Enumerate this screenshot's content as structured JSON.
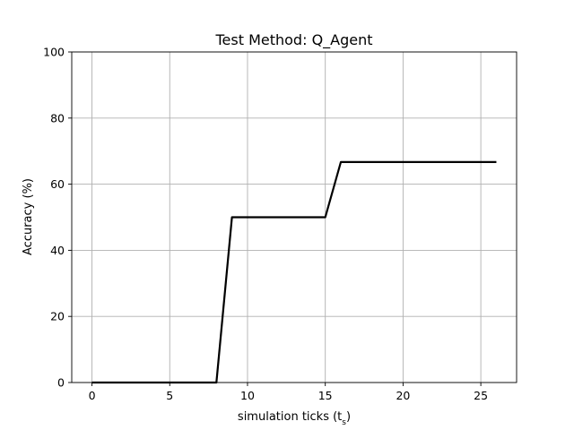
{
  "chart_data": {
    "type": "line",
    "title": "Test Method: Q_Agent",
    "xlabel": "simulation ticks (t",
    "xlabel_sub": "s",
    "xlabel_end": ")",
    "ylabel": "Accuracy (%)",
    "xlim": [
      -1.3,
      27.3
    ],
    "ylim": [
      0,
      100
    ],
    "xticks": [
      0,
      5,
      10,
      15,
      20,
      25
    ],
    "yticks": [
      0,
      20,
      40,
      60,
      80,
      100
    ],
    "grid": true,
    "legend": "none",
    "series": [
      {
        "color": "#000000",
        "x": [
          0,
          1,
          2,
          3,
          4,
          5,
          6,
          7,
          8,
          9,
          10,
          11,
          12,
          13,
          14,
          15,
          16,
          17,
          18,
          19,
          20,
          21,
          22,
          23,
          24,
          25,
          26
        ],
        "y": [
          0,
          0,
          0,
          0,
          0,
          0,
          0,
          0,
          0,
          50,
          50,
          50,
          50,
          50,
          50,
          50,
          66.7,
          66.7,
          66.7,
          66.7,
          66.7,
          66.7,
          66.7,
          66.7,
          66.7,
          66.7,
          66.7
        ]
      }
    ]
  }
}
